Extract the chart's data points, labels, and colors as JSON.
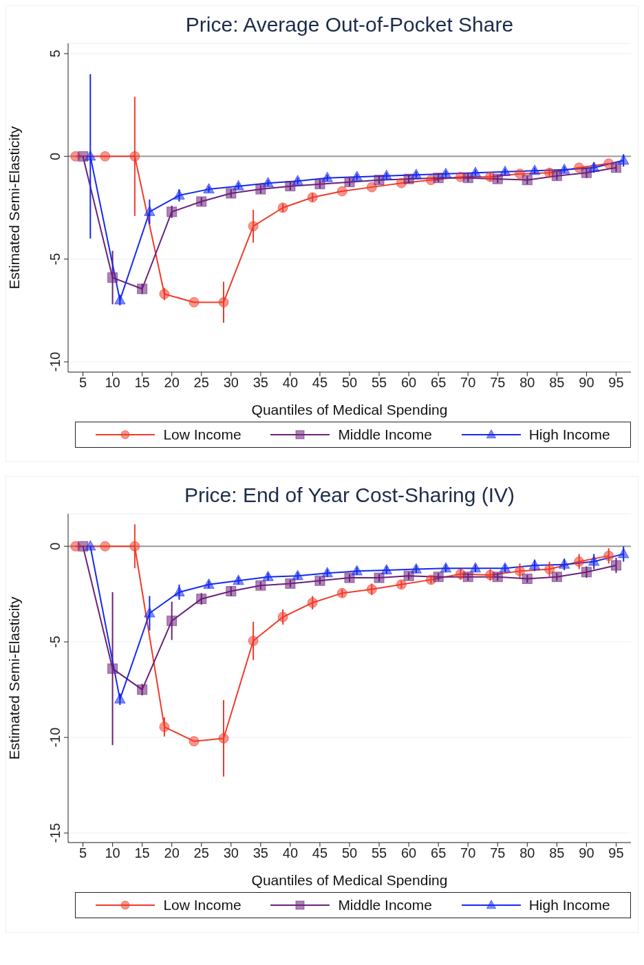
{
  "chart_data": [
    {
      "type": "line",
      "title": "Price: Average Out-of-Pocket Share",
      "xlabel": "Quantiles of Medical Spending",
      "ylabel": "Estimated Semi-Elasticity",
      "xlim": [
        2.5,
        97.5
      ],
      "ylim": [
        -10.5,
        5.5
      ],
      "xticks": [
        5,
        10,
        15,
        20,
        25,
        30,
        35,
        40,
        45,
        50,
        55,
        60,
        65,
        70,
        75,
        80,
        85,
        90,
        95
      ],
      "yticks": [
        -10,
        -5,
        0,
        5
      ],
      "grid": "y",
      "legend": "bottom",
      "line_style": "solid",
      "ref_lines": [
        {
          "axis": "y",
          "value": 0,
          "color": "#999999"
        }
      ],
      "series": [
        {
          "name": "Low Income",
          "color": "#f03a2a",
          "marker": "circle",
          "x": [
            3.75,
            8.75,
            13.75,
            18.75,
            23.75,
            28.75,
            33.75,
            38.75,
            43.75,
            48.75,
            53.75,
            58.75,
            63.75,
            68.75,
            73.75,
            78.75,
            83.75,
            88.75,
            93.75
          ],
          "values": [
            0,
            0,
            0,
            -6.7,
            -7.1,
            -7.1,
            -3.4,
            -2.5,
            -2.0,
            -1.7,
            -1.5,
            -1.3,
            -1.15,
            -1.0,
            -1.0,
            -0.85,
            -0.8,
            -0.55,
            -0.35
          ],
          "errors": [
            null,
            null,
            2.9,
            0.3,
            null,
            1.0,
            0.8,
            0.2,
            0.2,
            null,
            null,
            null,
            null,
            null,
            0.2,
            null,
            0.2,
            null,
            null
          ]
        },
        {
          "name": "Middle Income",
          "color": "#6a1f7a",
          "marker": "square",
          "x": [
            5,
            10,
            15,
            20,
            25,
            30,
            35,
            40,
            45,
            50,
            55,
            60,
            65,
            70,
            75,
            80,
            85,
            90,
            95
          ],
          "values": [
            0,
            -5.9,
            -6.45,
            -2.7,
            -2.2,
            -1.8,
            -1.6,
            -1.45,
            -1.35,
            -1.25,
            -1.15,
            -1.1,
            -1.05,
            -1.05,
            -1.1,
            -1.15,
            -0.95,
            -0.8,
            -0.55
          ],
          "errors": [
            null,
            1.3,
            0.25,
            0.3,
            0.2,
            0.2,
            0.2,
            0.2,
            0.2,
            0.2,
            0.2,
            0.2,
            0.2,
            0.2,
            0.2,
            0.2,
            0.2,
            0.25,
            0.2
          ]
        },
        {
          "name": "High Income",
          "color": "#1428f0",
          "marker": "triangle",
          "x": [
            6.25,
            11.25,
            16.25,
            21.25,
            26.25,
            31.25,
            36.25,
            41.25,
            46.25,
            51.25,
            56.25,
            61.25,
            66.25,
            71.25,
            76.25,
            81.25,
            86.25,
            91.25,
            96.25
          ],
          "values": [
            0,
            -7.0,
            -2.7,
            -1.9,
            -1.6,
            -1.45,
            -1.3,
            -1.2,
            -1.05,
            -1.0,
            -0.95,
            -0.9,
            -0.85,
            -0.8,
            -0.75,
            -0.7,
            -0.65,
            -0.55,
            -0.2
          ],
          "errors": [
            4.0,
            0.25,
            0.6,
            0.3,
            0.15,
            0.15,
            0.15,
            0.15,
            0.15,
            0.15,
            0.15,
            0.15,
            0.15,
            0.15,
            0.15,
            0.15,
            0.15,
            0.25,
            0.3
          ]
        }
      ]
    },
    {
      "type": "line",
      "title": "Price: End of Year Cost-Sharing (IV)",
      "xlabel": "Quantiles of Medical Spending",
      "ylabel": "Estimated Semi-Elasticity",
      "xlim": [
        2.5,
        97.5
      ],
      "ylim": [
        -15.5,
        1.7
      ],
      "xticks": [
        5,
        10,
        15,
        20,
        25,
        30,
        35,
        40,
        45,
        50,
        55,
        60,
        65,
        70,
        75,
        80,
        85,
        90,
        95
      ],
      "yticks": [
        -15,
        -10,
        -5,
        0
      ],
      "grid": "y",
      "legend": "bottom",
      "line_style": "solid",
      "ref_lines": [
        {
          "axis": "y",
          "value": 0,
          "color": "#999999"
        }
      ],
      "series": [
        {
          "name": "Low Income",
          "color": "#f03a2a",
          "marker": "circle",
          "x": [
            3.75,
            8.75,
            13.75,
            18.75,
            23.75,
            28.75,
            33.75,
            38.75,
            43.75,
            48.75,
            53.75,
            58.75,
            63.75,
            68.75,
            73.75,
            78.75,
            83.75,
            88.75,
            93.75
          ],
          "values": [
            0,
            0,
            0,
            -9.45,
            -10.2,
            -10.05,
            -4.95,
            -3.7,
            -2.95,
            -2.45,
            -2.25,
            -2.0,
            -1.75,
            -1.45,
            -1.5,
            -1.3,
            -1.2,
            -0.8,
            -0.5
          ],
          "errors": [
            null,
            null,
            1.15,
            0.5,
            null,
            2.0,
            1.0,
            0.4,
            0.35,
            0.2,
            0.3,
            0.2,
            0.2,
            0.3,
            0.3,
            0.4,
            0.4,
            0.4,
            0.4
          ]
        },
        {
          "name": "Middle Income",
          "color": "#6a1f7a",
          "marker": "square",
          "x": [
            5,
            10,
            15,
            20,
            25,
            30,
            35,
            40,
            45,
            50,
            55,
            60,
            65,
            70,
            75,
            80,
            85,
            90,
            95
          ],
          "values": [
            0,
            -6.4,
            -7.5,
            -3.9,
            -2.75,
            -2.35,
            -2.05,
            -1.95,
            -1.8,
            -1.65,
            -1.65,
            -1.55,
            -1.6,
            -1.6,
            -1.6,
            -1.7,
            -1.6,
            -1.35,
            -1.0
          ],
          "errors": [
            null,
            4.0,
            0.3,
            1.0,
            0.3,
            0.25,
            0.2,
            0.2,
            0.2,
            0.2,
            0.2,
            0.2,
            0.2,
            0.2,
            0.2,
            0.2,
            0.2,
            0.3,
            0.4
          ]
        },
        {
          "name": "High Income",
          "color": "#1428f0",
          "marker": "triangle",
          "x": [
            6.25,
            11.25,
            16.25,
            21.25,
            26.25,
            31.25,
            36.25,
            41.25,
            46.25,
            51.25,
            56.25,
            61.25,
            66.25,
            71.25,
            76.25,
            81.25,
            86.25,
            91.25,
            96.25
          ],
          "values": [
            0,
            -8.0,
            -3.5,
            -2.4,
            -2.0,
            -1.8,
            -1.6,
            -1.55,
            -1.4,
            -1.3,
            -1.25,
            -1.2,
            -1.15,
            -1.15,
            -1.15,
            -1.0,
            -0.95,
            -0.8,
            -0.4
          ],
          "errors": [
            null,
            0.3,
            0.9,
            0.4,
            0.2,
            0.2,
            0.2,
            0.2,
            0.2,
            0.2,
            0.2,
            0.2,
            0.2,
            0.2,
            0.2,
            0.3,
            0.3,
            0.4,
            0.4
          ]
        }
      ]
    }
  ]
}
